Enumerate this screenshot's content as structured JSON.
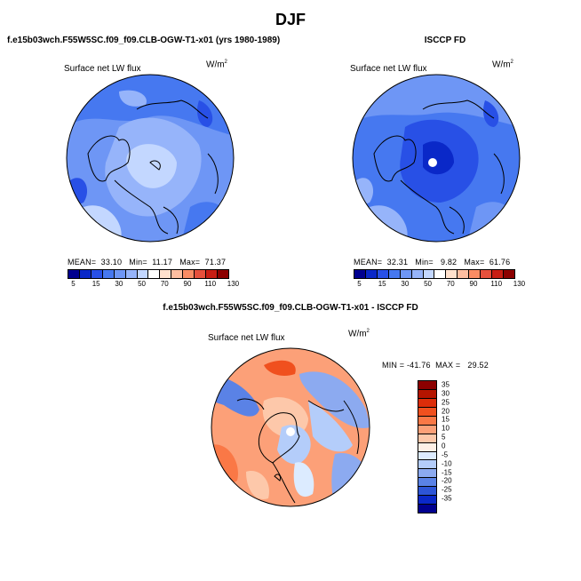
{
  "title": "DJF",
  "panels": {
    "model": {
      "title": "f.e15b03wch.F55W5SC.f09_f09.CLB-OGW-T1-x01 (yrs 1980-1989)",
      "variable": "Surface net LW flux",
      "units": "W/m",
      "units_exp": "2",
      "stats": "MEAN=  33.10   Min=  11.17   Max=  71.37"
    },
    "obs": {
      "title": "ISCCP FD",
      "variable": "Surface net LW flux",
      "units": "W/m",
      "units_exp": "2",
      "stats": "MEAN=  32.31   Min=   9.82   Max=  61.76"
    },
    "diff": {
      "title": "f.e15b03wch.F55W5SC.f09_f09.CLB-OGW-T1-x01 - ISCCP FD",
      "variable": "Surface net LW flux",
      "units": "W/m",
      "units_exp": "2",
      "stats": "MIN = -41.76  MAX =   29.52"
    }
  },
  "colorbar_abs": {
    "labels": [
      "5",
      "15",
      "30",
      "50",
      "70",
      "90",
      "110",
      "130"
    ],
    "colors": [
      "#00008f",
      "#0a28c8",
      "#2850e6",
      "#4678f0",
      "#6e96f5",
      "#96b4fa",
      "#c3d7ff",
      "#ffffff",
      "#ffe1cd",
      "#ffbea0",
      "#fa8c64",
      "#e6503c",
      "#c81e14",
      "#8c0000"
    ]
  },
  "colorbar_diff": {
    "labels": [
      "35",
      "30",
      "25",
      "20",
      "15",
      "10",
      "5",
      "0",
      "-5",
      "-10",
      "-15",
      "-20",
      "-25",
      "-35"
    ],
    "colors": [
      "#8c0000",
      "#b41400",
      "#dc2d0a",
      "#f0501e",
      "#fa7846",
      "#fca078",
      "#fdc8aa",
      "#fff0e6",
      "#dcebff",
      "#b4cdfa",
      "#8caaf0",
      "#5a82e6",
      "#2d55d7",
      "#0a28c8",
      "#00008f"
    ]
  }
}
